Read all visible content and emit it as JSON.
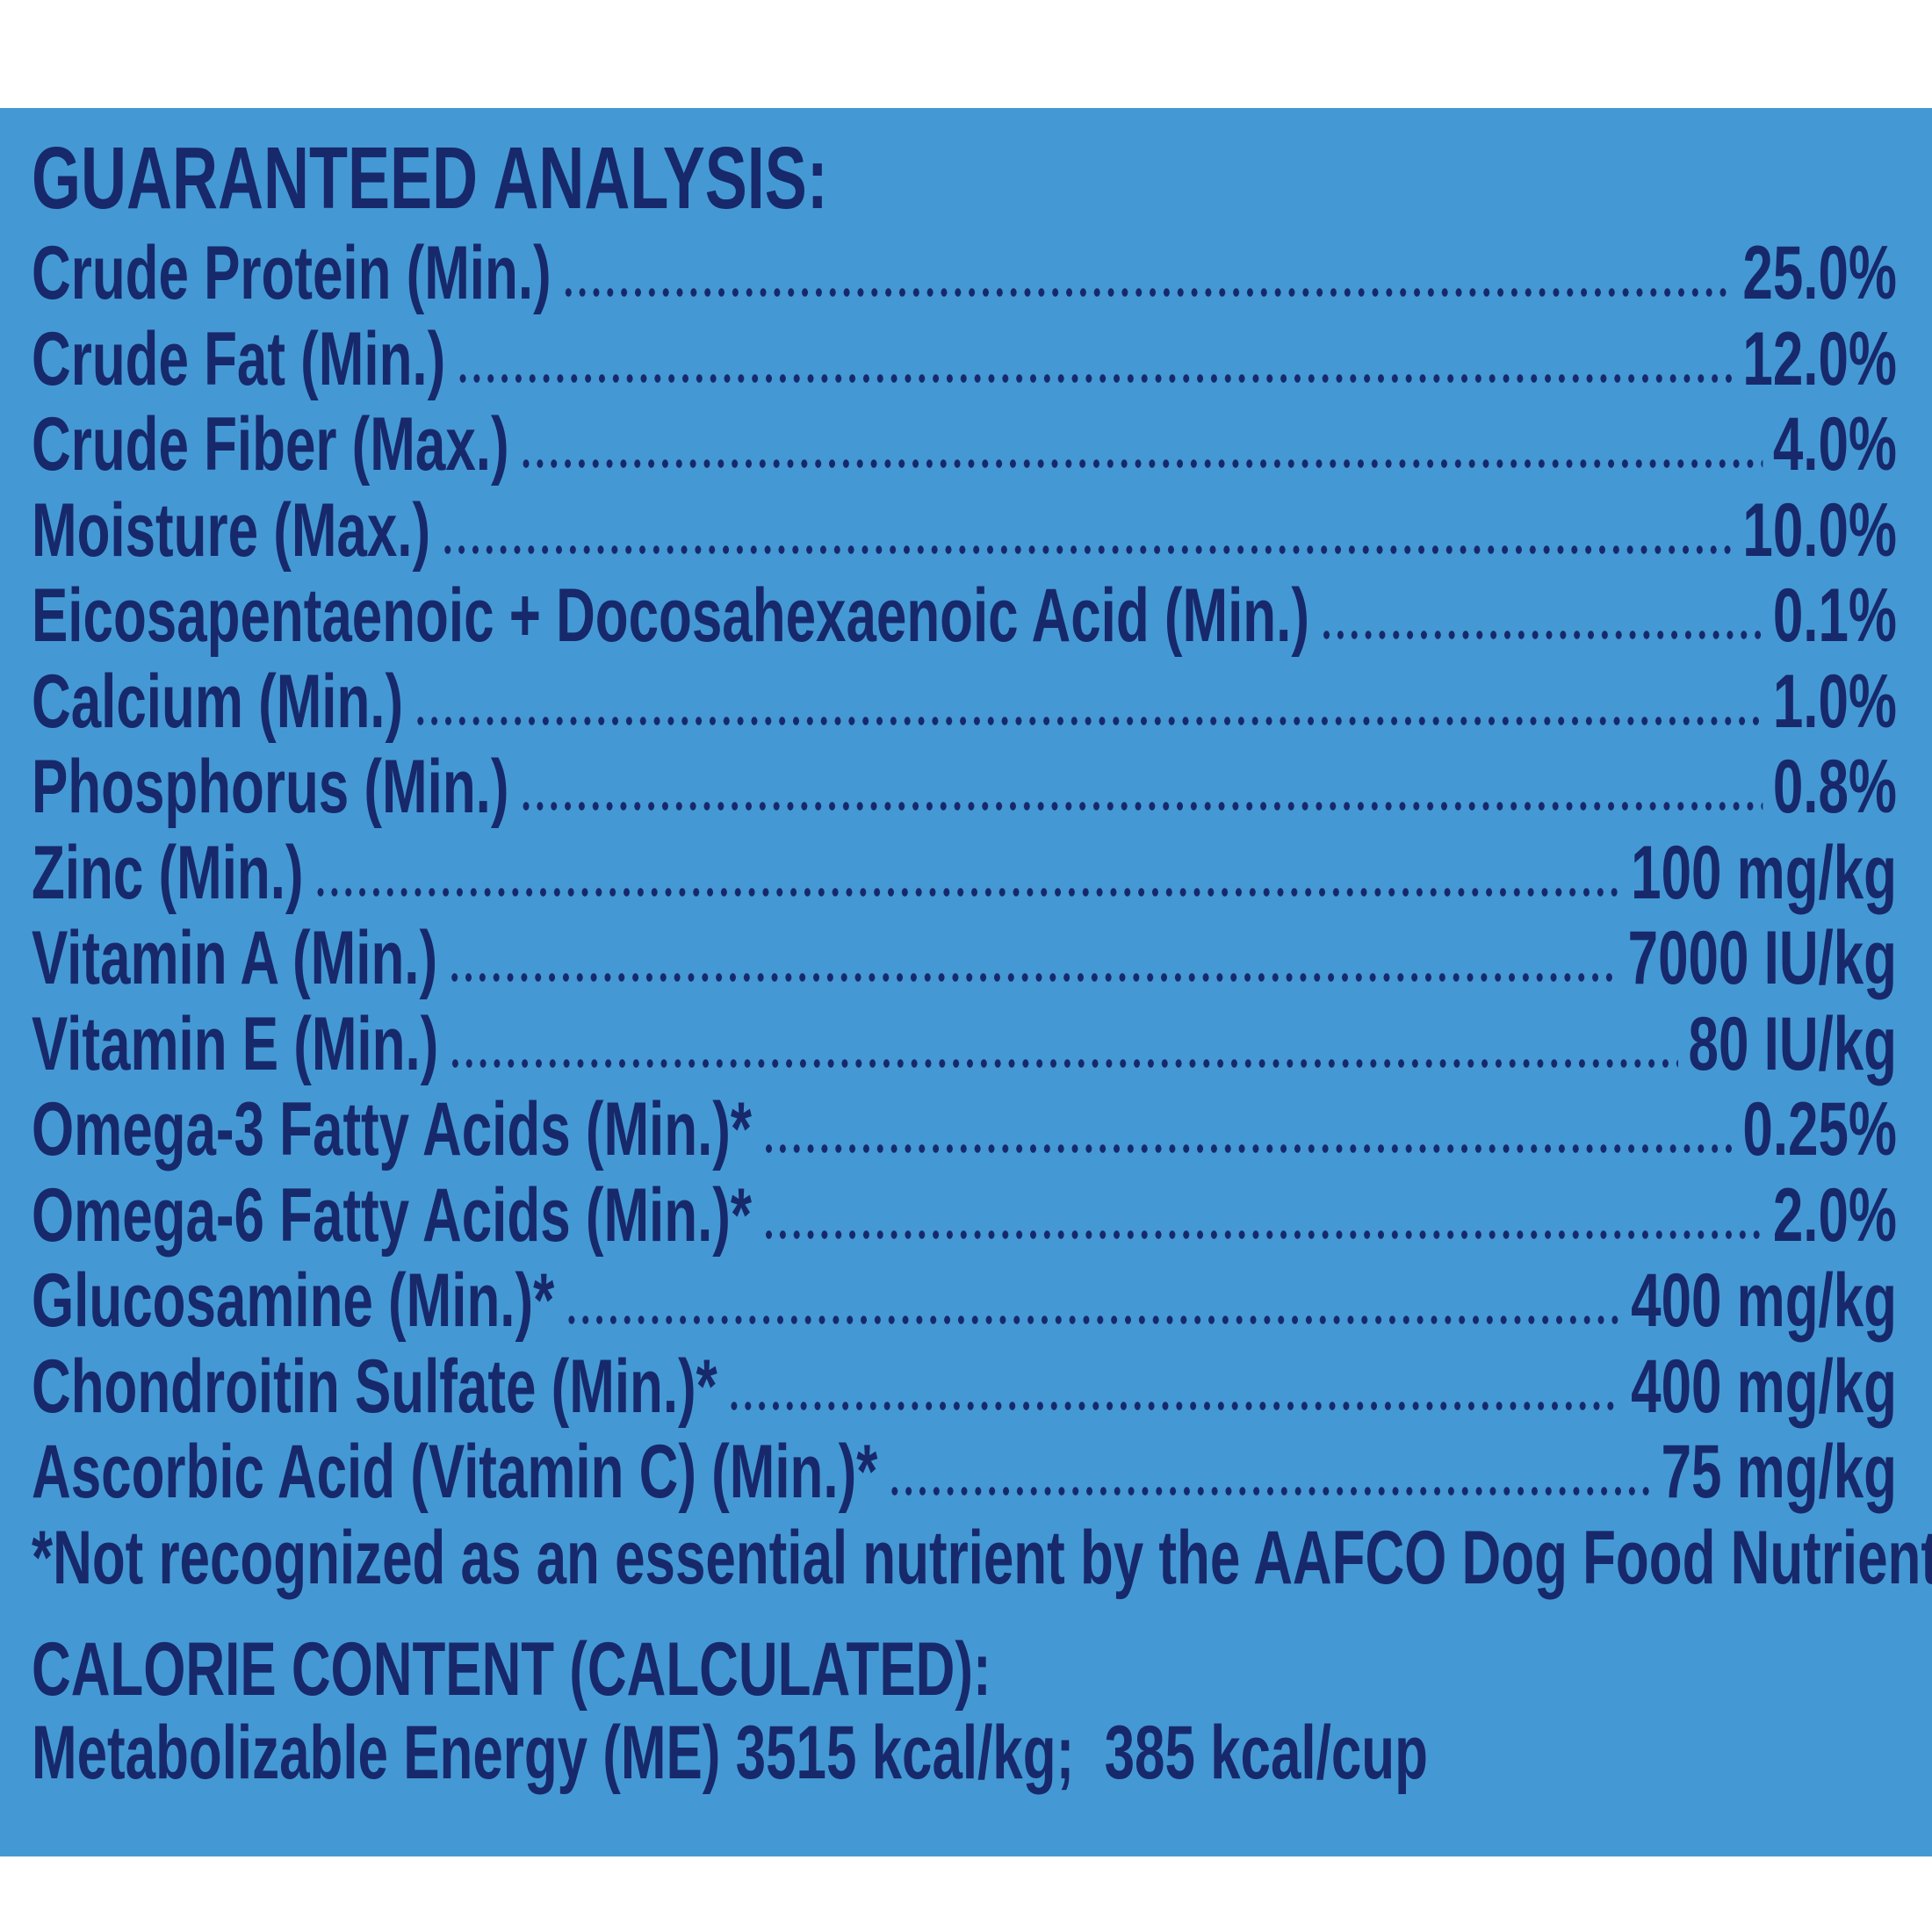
{
  "header": {
    "title": "GUARANTEED ANALYSIS:"
  },
  "rows": [
    {
      "label": "Crude Protein (Min.)",
      "value": "25.0%"
    },
    {
      "label": "Crude Fat (Min.)",
      "value": "12.0%"
    },
    {
      "label": "Crude Fiber (Max.)",
      "value": "4.0%"
    },
    {
      "label": "Moisture (Max.)",
      "value": "10.0%"
    },
    {
      "label": "Eicosapentaenoic + Docosahexaenoic Acid (Min.)",
      "value": "0.1%"
    },
    {
      "label": "Calcium (Min.)",
      "value": "1.0%"
    },
    {
      "label": "Phosphorus (Min.)",
      "value": "0.8%"
    },
    {
      "label": "Zinc (Min.)",
      "value": "100 mg/kg"
    },
    {
      "label": "Vitamin A (Min.)",
      "value": "7000 IU/kg"
    },
    {
      "label": "Vitamin E (Min.)",
      "value": "80 IU/kg"
    },
    {
      "label": "Omega-3 Fatty Acids (Min.)*",
      "value": "0.25%"
    },
    {
      "label": "Omega-6 Fatty Acids (Min.)*",
      "value": "2.0%"
    },
    {
      "label": "Glucosamine (Min.)*",
      "value": "400 mg/kg"
    },
    {
      "label": "Chondroitin Sulfate (Min.)*",
      "value": "400 mg/kg"
    },
    {
      "label": "Ascorbic Acid (Vitamin C) (Min.)*",
      "value": "75 mg/kg"
    }
  ],
  "footnote": "*Not recognized as an essential nutrient by the AAFCO Dog Food Nutrient Profiles.",
  "calorie": {
    "title": "CALORIE CONTENT (CALCULATED):",
    "text": "Metabolizable Energy (ME) 3515 kcal/kg;  385 kcal/cup"
  }
}
